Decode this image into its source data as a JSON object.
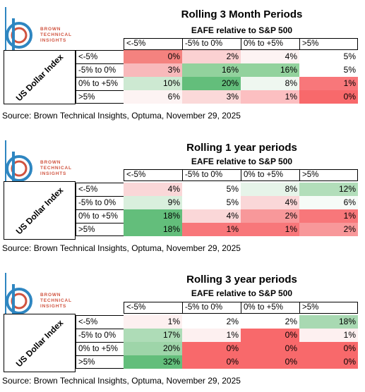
{
  "brand": {
    "line1": "BROWN",
    "line2": "TECHNICAL",
    "line3": "INSIGHTS",
    "color": "#d0533f",
    "accent": "#2e86c1"
  },
  "source": "Source: Brown Technical Insights, Optuma, November 29, 2025",
  "panels": [
    {
      "title": "Rolling 3 Month Periods",
      "subtitle": "EAFE relative to S&P 500",
      "yaxis": "US Dollar Index",
      "col_headers": [
        "<-5%",
        "-5% to 0%",
        "0% to +5%",
        ">5%"
      ],
      "rows": [
        {
          "label": "<-5%",
          "values": [
            "0%",
            "2%",
            "4%",
            "5%"
          ]
        },
        {
          "label": "-5% to 0%",
          "values": [
            "3%",
            "16%",
            "16%",
            "5%"
          ]
        },
        {
          "label": "0% to +5%",
          "values": [
            "10%",
            "20%",
            "8%",
            "1%"
          ]
        },
        {
          "label": ">5%",
          "values": [
            "6%",
            "3%",
            "1%",
            "0%"
          ]
        }
      ],
      "colors": [
        [
          "#f4827f",
          "#fbd1d2",
          "#fdf3f3",
          "#ffffff"
        ],
        [
          "#f8b9bb",
          "#92d29d",
          "#92d29d",
          "#ffffff"
        ],
        [
          "#cde9d2",
          "#63be7b",
          "#eff7f0",
          "#f8777a"
        ],
        [
          "#fdf3f3",
          "#fbd9d9",
          "#fcbfc1",
          "#f8696b"
        ]
      ]
    },
    {
      "title": "Rolling 1 year periods",
      "subtitle": "EAFE relative to S&P 500",
      "yaxis": "US Dollar Index",
      "col_headers": [
        "<-5%",
        "-5% to 0%",
        "0% to +5%",
        ">5%"
      ],
      "rows": [
        {
          "label": "<-5%",
          "values": [
            "4%",
            "5%",
            "8%",
            "12%"
          ]
        },
        {
          "label": "-5% to 0%",
          "values": [
            "9%",
            "5%",
            "4%",
            "6%"
          ]
        },
        {
          "label": "0% to +5%",
          "values": [
            "18%",
            "4%",
            "2%",
            "1%"
          ]
        },
        {
          "label": ">5%",
          "values": [
            "18%",
            "1%",
            "1%",
            "2%"
          ]
        }
      ],
      "colors": [
        [
          "#fad7d8",
          "#ffffff",
          "#e6f4e9",
          "#b2deba"
        ],
        [
          "#d9efdd",
          "#ffffff",
          "#fad7d8",
          "#f6fbf7"
        ],
        [
          "#63be7b",
          "#fad7d8",
          "#f8989a",
          "#f8777a"
        ],
        [
          "#63be7b",
          "#f8777a",
          "#f8777a",
          "#f8989a"
        ]
      ]
    },
    {
      "title": "Rolling 3 year periods",
      "subtitle": "EAFE relative to S&P 500",
      "yaxis": "US Dollar Index",
      "col_headers": [
        "<-5%",
        "-5% to 0%",
        "0% to +5%",
        ">5%"
      ],
      "rows": [
        {
          "label": "<-5%",
          "values": [
            "1%",
            "2%",
            "2%",
            "18%"
          ]
        },
        {
          "label": "-5% to 0%",
          "values": [
            "17%",
            "1%",
            "0%",
            "1%"
          ]
        },
        {
          "label": "0% to +5%",
          "values": [
            "20%",
            "0%",
            "0%",
            "0%"
          ]
        },
        {
          "label": ">5%",
          "values": [
            "32%",
            "0%",
            "0%",
            "0%"
          ]
        }
      ],
      "colors": [
        [
          "#fdf0f0",
          "#ffffff",
          "#ffffff",
          "#a8d9b2"
        ],
        [
          "#aedcb7",
          "#fdf0f0",
          "#f8696b",
          "#fdf0f0"
        ],
        [
          "#9ed5a9",
          "#f8696b",
          "#f8696b",
          "#f8696b"
        ],
        [
          "#63be7b",
          "#f8696b",
          "#f8696b",
          "#f8696b"
        ]
      ]
    }
  ]
}
